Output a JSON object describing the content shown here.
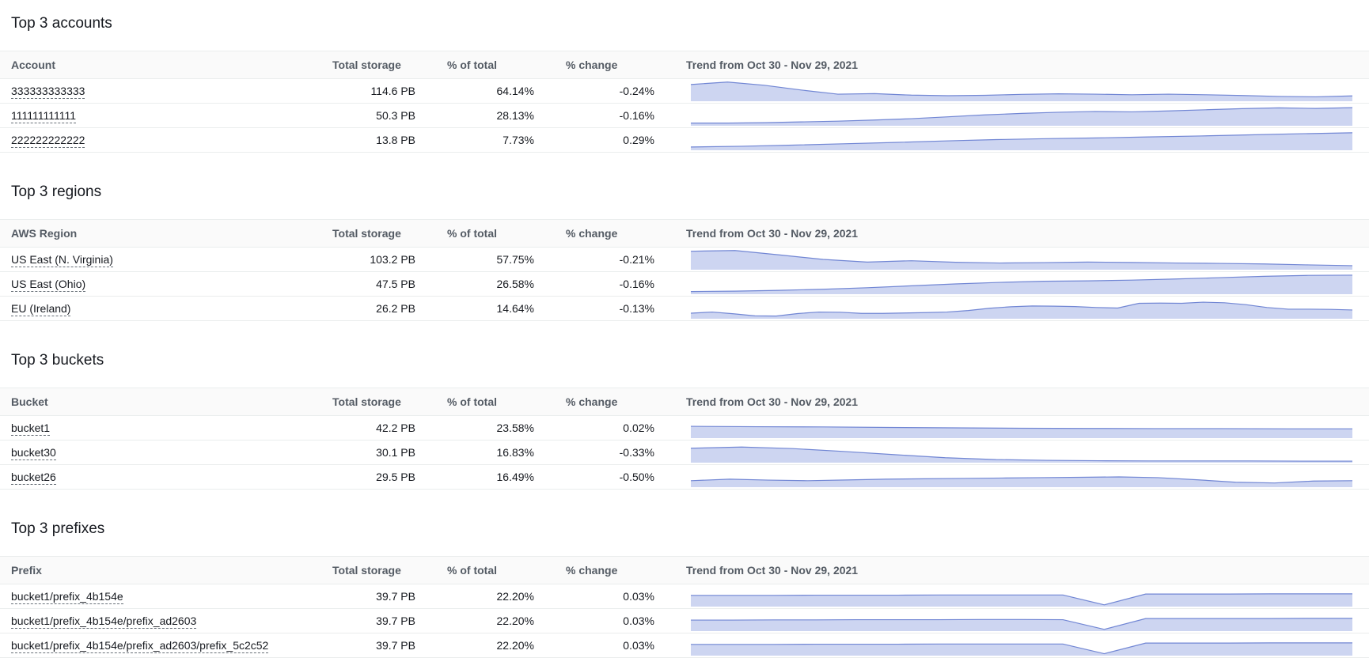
{
  "colors": {
    "spark_stroke": "#7186d4",
    "spark_fill": "#cdd5f1",
    "border": "#eaeded",
    "header_bg": "#fafafa",
    "header_text": "#545b64",
    "text": "#16191f"
  },
  "sections": [
    {
      "title": "Top 3 accounts",
      "columns": {
        "key": "Account",
        "total": "Total storage",
        "pct": "% of total",
        "change": "% change",
        "trend": "Trend from Oct 30 - Nov 29, 2021"
      },
      "rows": [
        {
          "name": "333333333333",
          "total_storage": "114.6 PB",
          "pct_of_total": "64.14%",
          "pct_change": "-0.24%",
          "trend": [
            0.84,
            0.97,
            0.8,
            0.55,
            0.33,
            0.36,
            0.28,
            0.25,
            0.27,
            0.32,
            0.35,
            0.33,
            0.3,
            0.33,
            0.3,
            0.26,
            0.21,
            0.19,
            0.24
          ]
        },
        {
          "name": "111111111111",
          "total_storage": "50.3 PB",
          "pct_of_total": "28.13%",
          "pct_change": "-0.16%",
          "trend": [
            0.1,
            0.1,
            0.12,
            0.16,
            0.2,
            0.26,
            0.33,
            0.43,
            0.53,
            0.61,
            0.67,
            0.71,
            0.69,
            0.74,
            0.8,
            0.86,
            0.9,
            0.87,
            0.91
          ]
        },
        {
          "name": "222222222222",
          "total_storage": "13.8 PB",
          "pct_of_total": "7.73%",
          "pct_change": "0.29%",
          "trend": [
            0.13,
            0.17,
            0.23,
            0.3,
            0.37,
            0.45,
            0.52,
            0.57,
            0.61,
            0.66,
            0.71,
            0.77,
            0.83,
            0.88
          ]
        }
      ]
    },
    {
      "title": "Top 3 regions",
      "columns": {
        "key": "AWS Region",
        "total": "Total storage",
        "pct": "% of total",
        "change": "% change",
        "trend": "Trend from Oct 30 - Nov 29, 2021"
      },
      "rows": [
        {
          "name": "US East (N. Virginia)",
          "total_storage": "103.2 PB",
          "pct_of_total": "57.75%",
          "pct_change": "-0.21%",
          "trend": [
            0.93,
            0.97,
            0.74,
            0.5,
            0.36,
            0.43,
            0.35,
            0.31,
            0.33,
            0.36,
            0.34,
            0.31,
            0.29,
            0.26,
            0.21,
            0.17
          ]
        },
        {
          "name": "US East (Ohio)",
          "total_storage": "47.5 PB",
          "pct_of_total": "26.58%",
          "pct_change": "-0.16%",
          "trend": [
            0.1,
            0.12,
            0.16,
            0.22,
            0.3,
            0.4,
            0.5,
            0.58,
            0.64,
            0.66,
            0.7,
            0.76,
            0.83,
            0.9,
            0.95,
            0.96
          ]
        },
        {
          "name": "EU (Ireland)",
          "total_storage": "26.2 PB",
          "pct_of_total": "14.64%",
          "pct_change": "-0.13%",
          "trend": [
            0.25,
            0.31,
            0.22,
            0.11,
            0.1,
            0.23,
            0.31,
            0.3,
            0.24,
            0.24,
            0.26,
            0.28,
            0.31,
            0.39,
            0.51,
            0.59,
            0.63,
            0.62,
            0.6,
            0.55,
            0.52,
            0.77,
            0.78,
            0.77,
            0.83,
            0.8,
            0.7,
            0.55,
            0.46,
            0.46,
            0.45,
            0.42
          ]
        }
      ]
    },
    {
      "title": "Top 3 buckets",
      "columns": {
        "key": "Bucket",
        "total": "Total storage",
        "pct": "% of total",
        "change": "% change",
        "trend": "Trend from Oct 30 - Nov 29, 2021"
      },
      "rows": [
        {
          "name": "bucket1",
          "total_storage": "42.2 PB",
          "pct_of_total": "23.58%",
          "pct_change": "0.02%",
          "trend": [
            0.58,
            0.56,
            0.55,
            0.52,
            0.5,
            0.48,
            0.47,
            0.46,
            0.46,
            0.45,
            0.45
          ]
        },
        {
          "name": "bucket30",
          "total_storage": "30.1 PB",
          "pct_of_total": "16.83%",
          "pct_change": "-0.33%",
          "trend": [
            0.72,
            0.78,
            0.7,
            0.55,
            0.38,
            0.22,
            0.12,
            0.08,
            0.06,
            0.05,
            0.05,
            0.05,
            0.04,
            0.04
          ]
        },
        {
          "name": "bucket26",
          "total_storage": "29.5 PB",
          "pct_of_total": "16.49%",
          "pct_change": "-0.50%",
          "trend": [
            0.3,
            0.38,
            0.33,
            0.3,
            0.34,
            0.38,
            0.4,
            0.42,
            0.44,
            0.46,
            0.48,
            0.5,
            0.46,
            0.35,
            0.22,
            0.18,
            0.28,
            0.3
          ]
        }
      ]
    },
    {
      "title": "Top 3 prefixes",
      "columns": {
        "key": "Prefix",
        "total": "Total storage",
        "pct": "% of total",
        "change": "% change",
        "trend": "Trend from Oct 30 - Nov 29, 2021"
      },
      "rows": [
        {
          "name": "bucket1/prefix_4b154e",
          "total_storage": "39.7 PB",
          "pct_of_total": "22.20%",
          "pct_change": "0.03%",
          "trend": [
            0.55,
            0.55,
            0.55,
            0.56,
            0.56,
            0.56,
            0.57,
            0.57,
            0.57,
            0.57,
            0.05,
            0.62,
            0.62,
            0.62,
            0.63,
            0.63,
            0.63
          ]
        },
        {
          "name": "bucket1/prefix_4b154e/prefix_ad2603",
          "total_storage": "39.7 PB",
          "pct_of_total": "22.20%",
          "pct_change": "0.03%",
          "trend": [
            0.54,
            0.54,
            0.55,
            0.55,
            0.56,
            0.56,
            0.56,
            0.57,
            0.57,
            0.56,
            0.05,
            0.62,
            0.62,
            0.62,
            0.62,
            0.63,
            0.63
          ]
        },
        {
          "name": "bucket1/prefix_4b154e/prefix_ad2603/prefix_5c2c52",
          "total_storage": "39.7 PB",
          "pct_of_total": "22.20%",
          "pct_change": "0.03%",
          "trend": [
            0.55,
            0.55,
            0.55,
            0.56,
            0.56,
            0.56,
            0.57,
            0.57,
            0.57,
            0.57,
            0.06,
            0.62,
            0.62,
            0.62,
            0.63,
            0.63,
            0.63
          ]
        }
      ]
    }
  ]
}
